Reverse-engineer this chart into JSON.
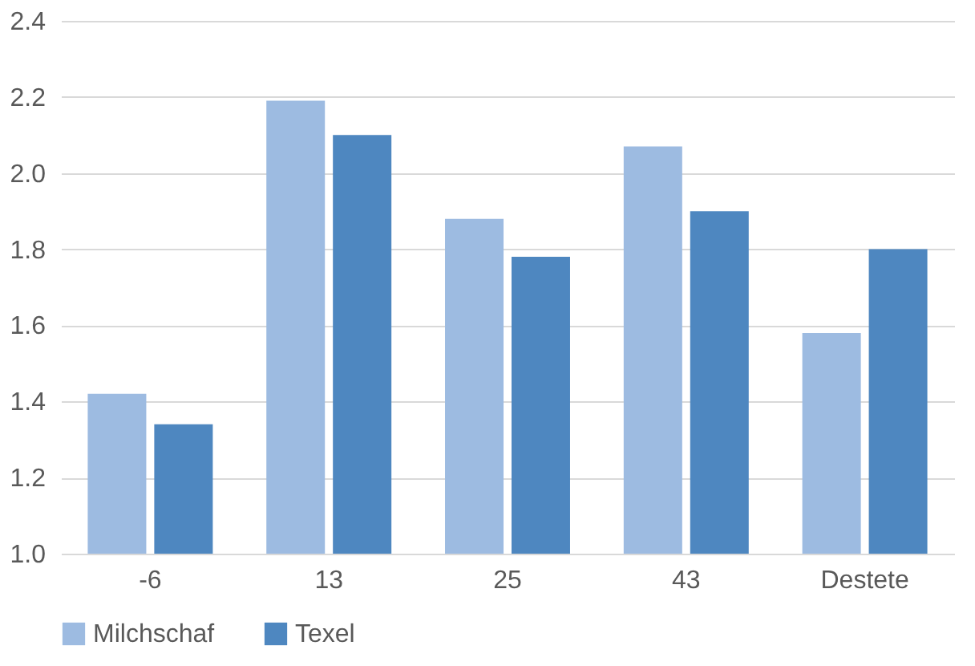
{
  "chart_data": {
    "type": "bar",
    "categories": [
      "-6",
      "13",
      "25",
      "43",
      "Destete"
    ],
    "series": [
      {
        "name": "Milchschaf",
        "color": "#9dbbe1",
        "values": [
          1.42,
          2.19,
          1.88,
          2.07,
          1.58
        ]
      },
      {
        "name": "Texel",
        "color": "#4e87c0",
        "values": [
          1.34,
          2.1,
          1.78,
          1.9,
          1.8
        ]
      }
    ],
    "ylim": [
      1.0,
      2.4
    ],
    "yticks": [
      {
        "value": 1,
        "label": "1.0"
      },
      1.2,
      1.4,
      1.6,
      1.8,
      {
        "value": 2,
        "label": "2.0"
      },
      2.2,
      2.4
    ],
    "grid": "y",
    "legend": "bottom"
  }
}
